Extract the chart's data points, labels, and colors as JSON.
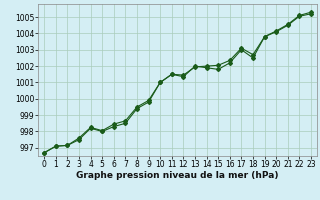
{
  "title": "Graphe pression niveau de la mer (hPa)",
  "bg_color": "#d4eef4",
  "grid_color": "#aaccbb",
  "line_color": "#1a5c1a",
  "x_ticks": [
    0,
    1,
    2,
    3,
    4,
    5,
    6,
    7,
    8,
    9,
    10,
    11,
    12,
    13,
    14,
    15,
    16,
    17,
    18,
    19,
    20,
    21,
    22,
    23
  ],
  "ylim": [
    996.5,
    1005.8
  ],
  "yticks": [
    997,
    998,
    999,
    1000,
    1001,
    1002,
    1003,
    1004,
    1005
  ],
  "line1_y": [
    996.7,
    997.1,
    997.15,
    997.5,
    998.2,
    998.0,
    998.3,
    998.5,
    999.4,
    999.8,
    1001.0,
    1001.5,
    1001.35,
    1002.0,
    1001.9,
    1001.8,
    1002.2,
    1003.0,
    1002.5,
    1003.8,
    1004.1,
    1004.5,
    1005.05,
    1005.2
  ],
  "line2_y": [
    996.7,
    997.1,
    997.15,
    997.6,
    998.25,
    998.05,
    998.45,
    998.65,
    999.5,
    999.9,
    1001.0,
    1001.5,
    1001.45,
    1001.95,
    1002.0,
    1002.05,
    1002.35,
    1003.1,
    1002.7,
    1003.8,
    1004.15,
    1004.55,
    1005.1,
    1005.3
  ],
  "tick_fontsize": 5.5,
  "label_fontsize": 6.5,
  "fig_width": 3.2,
  "fig_height": 2.0,
  "dpi": 100
}
